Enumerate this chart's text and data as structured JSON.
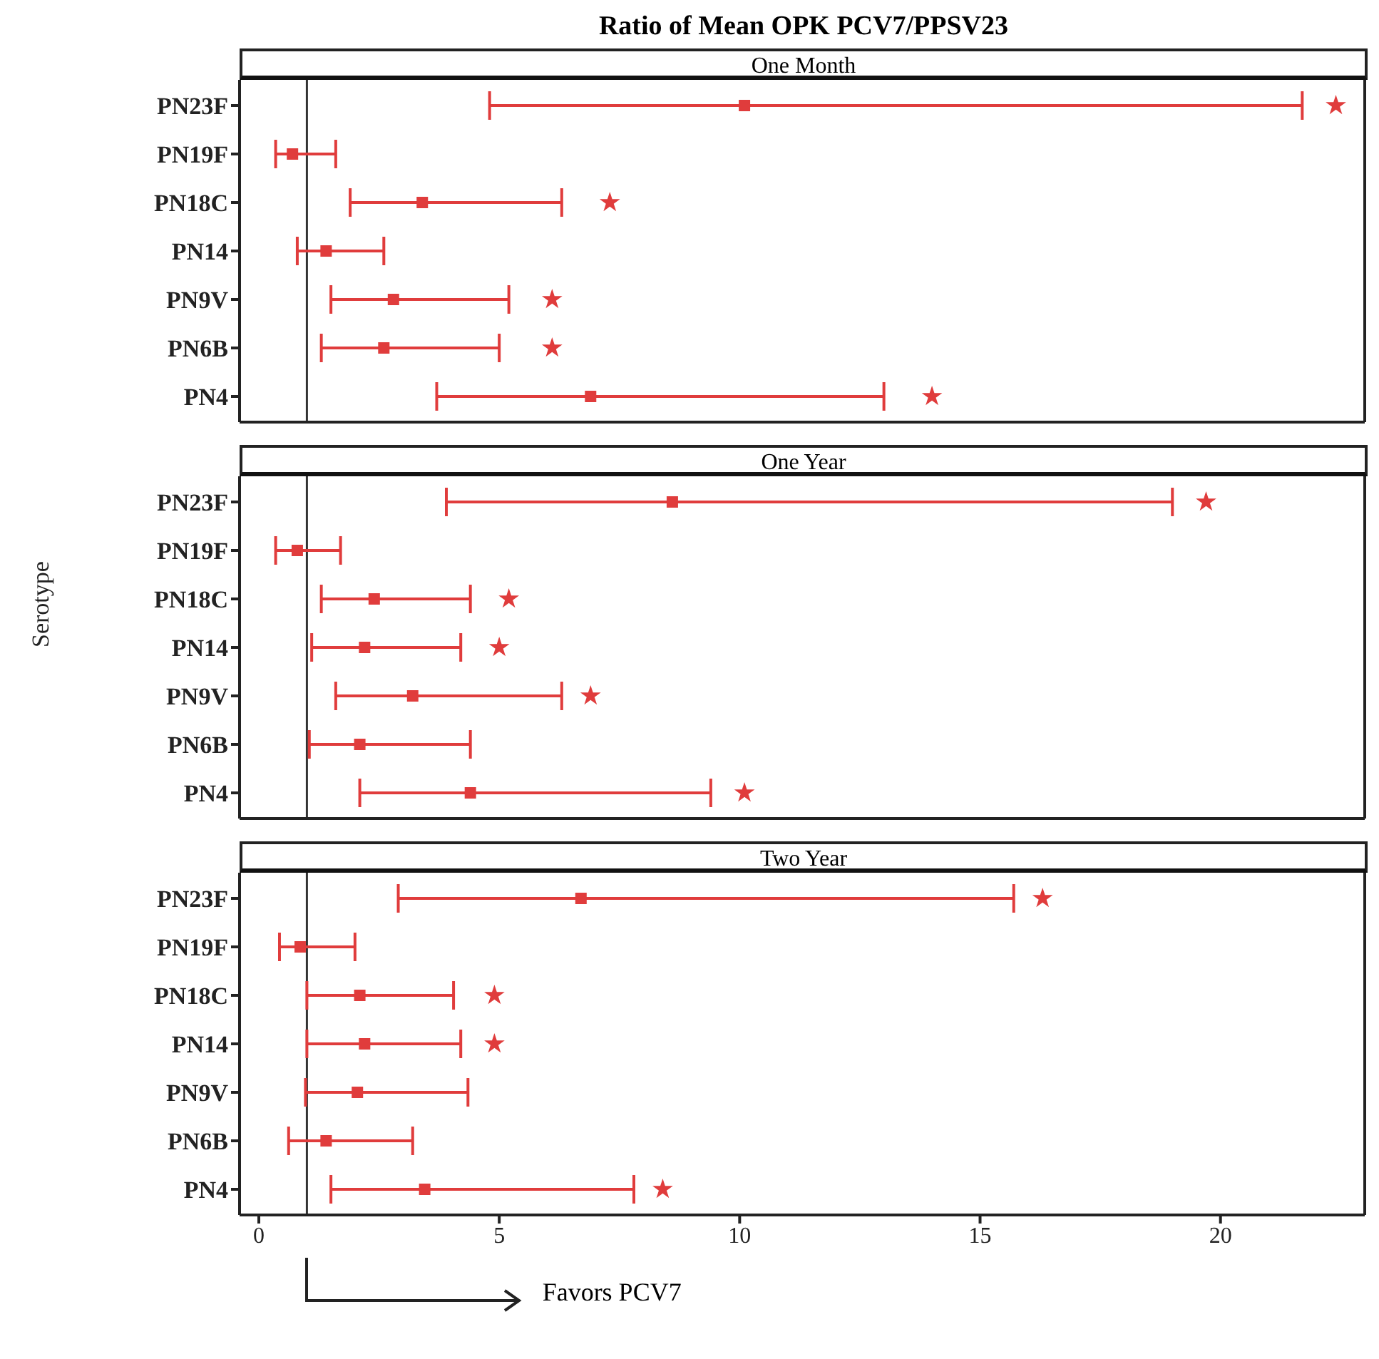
{
  "chart_data": [
    {
      "type": "scatter",
      "title": "Ratio of Mean OPK PCV7/PPSV23",
      "subtitle": "One Month",
      "categories": [
        "PN23F",
        "PN19F",
        "PN18C",
        "PN14",
        "PN9V",
        "PN6B",
        "PN4"
      ],
      "series": [
        {
          "marker": "square",
          "color": "#e03c3c",
          "values": [
            10.1,
            0.7,
            3.4,
            1.4,
            2.8,
            2.6,
            6.9
          ],
          "errors": [
            [
              4.8,
              21.7
            ],
            [
              0.35,
              1.6
            ],
            [
              1.9,
              6.3
            ],
            [
              0.8,
              2.6
            ],
            [
              1.5,
              5.2
            ],
            [
              1.3,
              5.0
            ],
            [
              3.7,
              13.0
            ]
          ]
        },
        {
          "marker": "star",
          "color": "#e03c3c",
          "values": [
            22.4,
            null,
            7.3,
            null,
            6.1,
            6.1,
            14.0
          ]
        }
      ],
      "orientation": "horizontal",
      "xlim": [
        -0.4,
        23
      ],
      "xticks": [
        0,
        5,
        10,
        15,
        20
      ],
      "tick_labels": "y",
      "ref_lines": [
        {
          "axis": "x",
          "value": 1,
          "color": "#333333"
        }
      ]
    },
    {
      "type": "scatter",
      "subtitle": "One Year",
      "ylabel": "Serotype",
      "categories": [
        "PN23F",
        "PN19F",
        "PN18C",
        "PN14",
        "PN9V",
        "PN6B",
        "PN4"
      ],
      "series": [
        {
          "marker": "square",
          "color": "#e03c3c",
          "values": [
            8.6,
            0.8,
            2.4,
            2.2,
            3.2,
            2.1,
            4.4
          ],
          "errors": [
            [
              3.9,
              19.0
            ],
            [
              0.35,
              1.7
            ],
            [
              1.3,
              4.4
            ],
            [
              1.1,
              4.2
            ],
            [
              1.6,
              6.3
            ],
            [
              1.05,
              4.4
            ],
            [
              2.1,
              9.4
            ]
          ]
        },
        {
          "marker": "star",
          "color": "#e03c3c",
          "values": [
            19.7,
            null,
            5.2,
            5.0,
            6.9,
            null,
            10.1
          ]
        }
      ],
      "orientation": "horizontal",
      "xlim": [
        -0.4,
        23
      ],
      "xticks": [
        0,
        5,
        10,
        15,
        20
      ],
      "tick_labels": "y",
      "ref_lines": [
        {
          "axis": "x",
          "value": 1,
          "color": "#333333"
        }
      ]
    },
    {
      "type": "scatter",
      "subtitle": "Two Year",
      "xlabel": "Favors PCV7",
      "categories": [
        "PN23F",
        "PN19F",
        "PN18C",
        "PN14",
        "PN9V",
        "PN6B",
        "PN4"
      ],
      "series": [
        {
          "marker": "square",
          "color": "#e03c3c",
          "values": [
            6.7,
            0.86,
            2.1,
            2.2,
            2.05,
            1.4,
            3.45
          ],
          "errors": [
            [
              2.9,
              15.7
            ],
            [
              0.43,
              2.0
            ],
            [
              1.0,
              4.05
            ],
            [
              1.0,
              4.2
            ],
            [
              0.97,
              4.35
            ],
            [
              0.62,
              3.2
            ],
            [
              1.5,
              7.8
            ]
          ]
        },
        {
          "marker": "star",
          "color": "#e03c3c",
          "values": [
            16.3,
            null,
            4.9,
            4.9,
            null,
            null,
            8.4
          ]
        }
      ],
      "orientation": "horizontal",
      "xlim": [
        -0.4,
        23
      ],
      "xticks": [
        0,
        5,
        10,
        15,
        20
      ],
      "ref_lines": [
        {
          "axis": "x",
          "value": 1,
          "color": "#333333"
        }
      ]
    }
  ]
}
